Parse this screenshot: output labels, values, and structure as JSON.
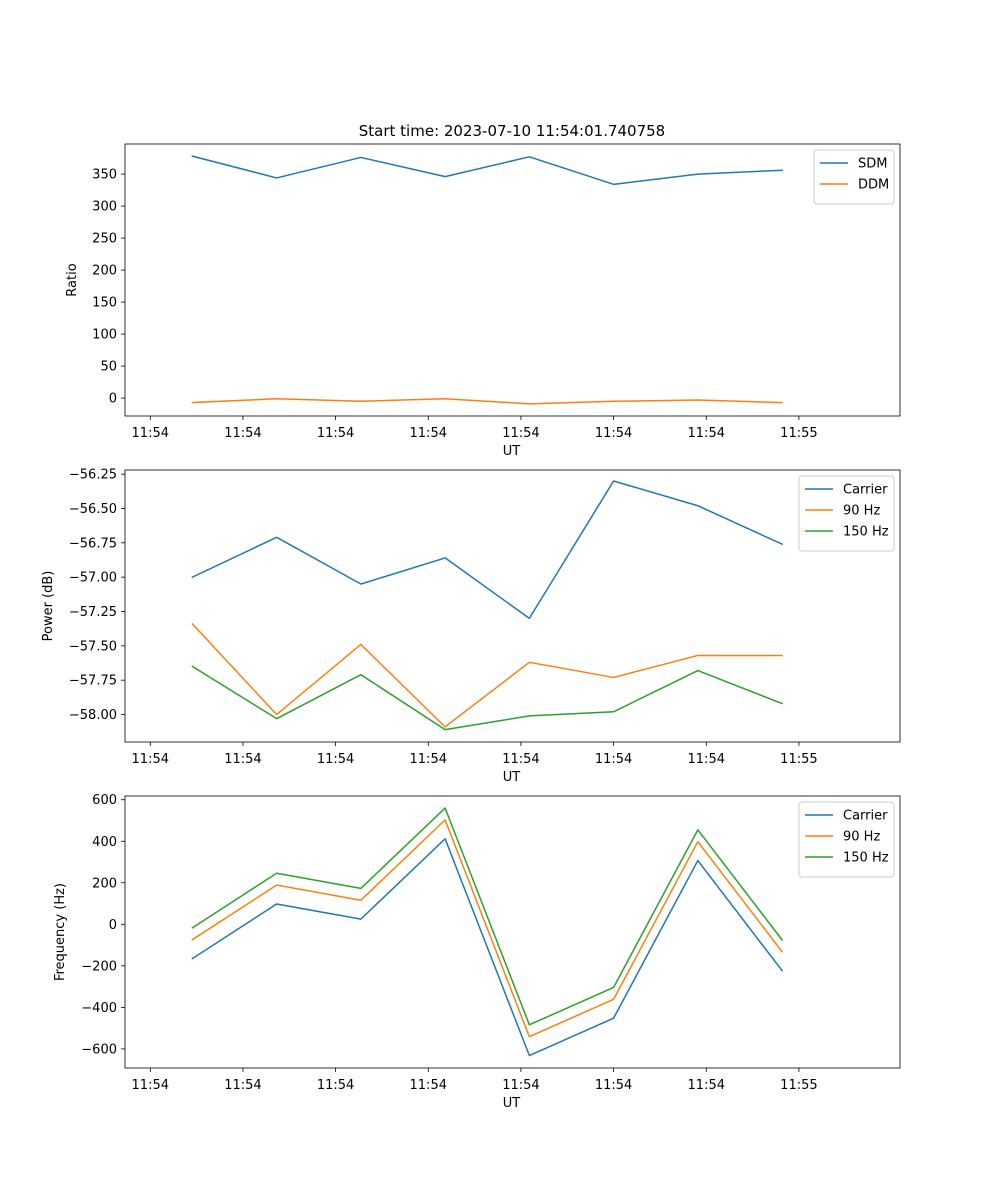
{
  "figure_title": "Start time: 2023-07-10 11:54:01.740758",
  "colors": {
    "blue": "#1f77b4",
    "orange": "#ff7f0e",
    "green": "#2ca02c",
    "legend_border": "#cccccc"
  },
  "chart_data": [
    {
      "type": "line",
      "name": "ratio",
      "title": "Start time: 2023-07-10 11:54:01.740758",
      "xlabel": "UT",
      "ylabel": "Ratio",
      "x_ticks": [
        "11:54",
        "11:54",
        "11:54",
        "11:54",
        "11:54",
        "11:54",
        "11:54"
      ],
      "x_tick_last": "11:55",
      "x": [
        1,
        2,
        3,
        4,
        5,
        6,
        7,
        8
      ],
      "xlim": [
        0.2,
        9.4
      ],
      "ylim": [
        -28,
        397
      ],
      "y_ticks": [
        0,
        50,
        100,
        150,
        200,
        250,
        300,
        350
      ],
      "legend": "top-right",
      "series": [
        {
          "name": "SDM",
          "color": "#1f77b4",
          "values": [
            378,
            344,
            376,
            346,
            377,
            334,
            350,
            356
          ]
        },
        {
          "name": "DDM",
          "color": "#ff7f0e",
          "values": [
            -7,
            -1,
            -5,
            -1,
            -9,
            -5,
            -3,
            -7
          ]
        }
      ]
    },
    {
      "type": "line",
      "name": "power",
      "title": "",
      "xlabel": "UT",
      "ylabel": "Power (dB)",
      "x_ticks": [
        "11:54",
        "11:54",
        "11:54",
        "11:54",
        "11:54",
        "11:54",
        "11:54"
      ],
      "x_tick_last": "11:55",
      "x": [
        1,
        2,
        3,
        4,
        5,
        6,
        7,
        8
      ],
      "xlim": [
        0.2,
        9.4
      ],
      "ylim": [
        -58.2,
        -56.22
      ],
      "y_ticks": [
        -58.0,
        -57.75,
        -57.5,
        -57.25,
        -57.0,
        -56.75,
        -56.5,
        -56.25
      ],
      "y_tick_labels": [
        "−58.00",
        "−57.75",
        "−57.50",
        "−57.25",
        "−57.00",
        "−56.75",
        "−56.50",
        "−56.25"
      ],
      "legend": "top-right",
      "series": [
        {
          "name": "Carrier",
          "color": "#1f77b4",
          "values": [
            -57.0,
            -56.71,
            -57.05,
            -56.86,
            -57.3,
            -56.3,
            -56.48,
            -56.76
          ]
        },
        {
          "name": "90 Hz",
          "color": "#ff7f0e",
          "values": [
            -57.34,
            -58.0,
            -57.49,
            -58.09,
            -57.62,
            -57.73,
            -57.57,
            -57.57
          ]
        },
        {
          "name": "150 Hz",
          "color": "#2ca02c",
          "values": [
            -57.65,
            -58.03,
            -57.71,
            -58.11,
            -58.01,
            -57.98,
            -57.68,
            -57.92
          ]
        }
      ]
    },
    {
      "type": "line",
      "name": "frequency",
      "title": "",
      "xlabel": "UT",
      "ylabel": "Frequency (Hz)",
      "x_ticks": [
        "11:54",
        "11:54",
        "11:54",
        "11:54",
        "11:54",
        "11:54",
        "11:54"
      ],
      "x_tick_last": "11:55",
      "x": [
        1,
        2,
        3,
        4,
        5,
        6,
        7,
        8
      ],
      "xlim": [
        0.2,
        9.4
      ],
      "ylim": [
        -692,
        618
      ],
      "y_ticks": [
        -600,
        -400,
        -200,
        0,
        200,
        400,
        600
      ],
      "y_tick_labels": [
        "−600",
        "−400",
        "−200",
        "0",
        "200",
        "400",
        "600"
      ],
      "legend": "top-right",
      "series": [
        {
          "name": "Carrier",
          "color": "#1f77b4",
          "values": [
            -165,
            98,
            25,
            412,
            -632,
            -452,
            307,
            -223
          ]
        },
        {
          "name": "90 Hz",
          "color": "#ff7f0e",
          "values": [
            -74,
            189,
            116,
            503,
            -541,
            -361,
            398,
            -132
          ]
        },
        {
          "name": "150 Hz",
          "color": "#2ca02c",
          "values": [
            -17,
            246,
            173,
            560,
            -484,
            -304,
            455,
            -75
          ]
        }
      ]
    }
  ]
}
